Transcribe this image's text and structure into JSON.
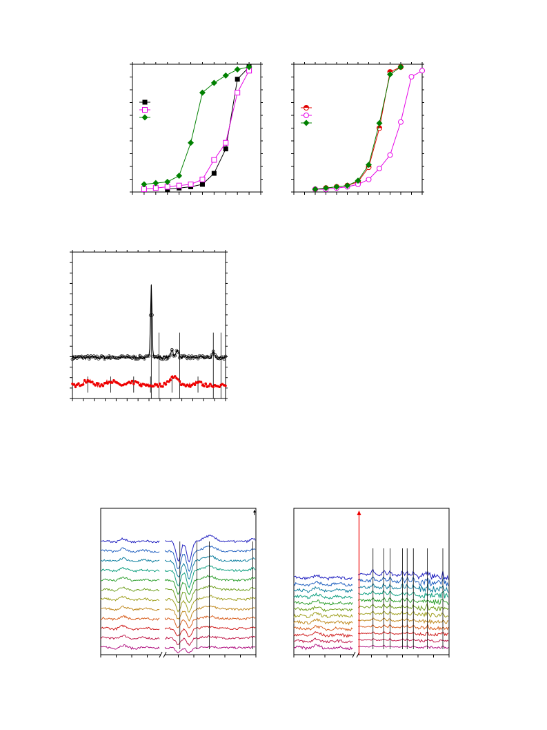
{
  "chart_data": [
    {
      "type": "line",
      "xlim": [
        0,
        11
      ],
      "ylim": [
        0,
        1
      ],
      "legend_position": "left",
      "series": [
        {
          "marker": "filled-square",
          "color": "#000000",
          "x": [
            3,
            4,
            5,
            6,
            7,
            8,
            9,
            10
          ],
          "y": [
            0.0,
            0.01,
            0.02,
            0.04,
            0.13,
            0.33,
            0.9,
            1.0
          ]
        },
        {
          "marker": "open-square",
          "color": "#e600e6",
          "x": [
            1,
            2,
            3,
            4,
            5,
            6,
            7,
            8,
            9,
            10
          ],
          "y": [
            0.0,
            0.01,
            0.02,
            0.03,
            0.04,
            0.08,
            0.24,
            0.38,
            0.79,
            0.97
          ]
        },
        {
          "marker": "filled-diamond",
          "color": "#008000",
          "x": [
            1,
            2,
            3,
            4,
            5,
            6,
            7,
            8,
            9,
            10
          ],
          "y": [
            0.04,
            0.05,
            0.06,
            0.11,
            0.38,
            0.79,
            0.87,
            0.93,
            0.98,
            1.0
          ]
        }
      ]
    },
    {
      "type": "line",
      "xlim": [
        0,
        12
      ],
      "ylim": [
        0,
        1
      ],
      "legend_position": "left",
      "series": [
        {
          "marker": "half-filled-circle",
          "color": "#e00000",
          "x": [
            2,
            3,
            4,
            5,
            6,
            7,
            8,
            9,
            10
          ],
          "y": [
            0.0,
            0.01,
            0.02,
            0.03,
            0.06,
            0.18,
            0.5,
            0.96,
            1.0
          ]
        },
        {
          "marker": "open-circle",
          "color": "#e600e6",
          "x": [
            2,
            3,
            4,
            5,
            6,
            7,
            8,
            9,
            10,
            11,
            12
          ],
          "y": [
            0.0,
            0.0,
            0.01,
            0.02,
            0.04,
            0.08,
            0.17,
            0.28,
            0.55,
            0.92,
            0.97
          ]
        },
        {
          "marker": "filled-diamond",
          "color": "#008000",
          "x": [
            2,
            3,
            4,
            5,
            6,
            7,
            8,
            9,
            10
          ],
          "y": [
            0.0,
            0.01,
            0.02,
            0.03,
            0.07,
            0.2,
            0.54,
            0.94,
            1.0
          ]
        }
      ]
    },
    {
      "type": "line",
      "xlim": [
        0,
        100
      ],
      "ylim": [
        0,
        100
      ],
      "reference_lines_x": [
        51.5,
        56.5,
        70,
        92,
        97
      ],
      "peak_tick_lines_x": [
        10,
        25,
        40,
        51,
        65,
        82
      ],
      "series": [
        {
          "color": "#000000",
          "marker": "open-circle",
          "baseline": 28,
          "noise": 1.2,
          "peaks": [
            {
              "x": 51.5,
              "h": 50,
              "w": 0.7
            },
            {
              "x": 65,
              "h": 6,
              "w": 1.0
            },
            {
              "x": 68.5,
              "h": 6,
              "w": 1.0
            },
            {
              "x": 92,
              "h": 4,
              "w": 1.0
            }
          ]
        },
        {
          "color": "#ee0000",
          "marker": "filled-circle",
          "baseline": 9,
          "noise": 1.2,
          "waves": [
            {
              "x": 10,
              "h": 3,
              "w": 4
            },
            {
              "x": 25,
              "h": 3,
              "w": 4
            },
            {
              "x": 40,
              "h": 2,
              "w": 4
            },
            {
              "x": 66,
              "h": 6,
              "w": 4
            },
            {
              "x": 82,
              "h": 2,
              "w": 3
            }
          ]
        }
      ]
    },
    {
      "type": "line",
      "xlim": [
        0,
        100
      ],
      "ylim": [
        0,
        100
      ],
      "axis_break_at": 40,
      "top_marker_arrow": "black",
      "reference_lines_x": [
        51,
        62,
        70,
        98
      ],
      "series_count": 12,
      "palette": [
        "#b01080",
        "#c01a4a",
        "#d02020",
        "#d86020",
        "#c08a20",
        "#a0a020",
        "#70a020",
        "#30a030",
        "#10a080",
        "#1080a0",
        "#2060c0",
        "#2020c0"
      ],
      "dips": [
        {
          "x": 50,
          "h": 28,
          "w": 2.2
        },
        {
          "x": 57,
          "h": 30,
          "w": 2.2
        }
      ],
      "bumps": [
        {
          "x": 70,
          "h": 8,
          "w": 5
        },
        {
          "x": 98,
          "h": 4,
          "w": 2
        }
      ]
    },
    {
      "type": "line",
      "xlim": [
        0,
        100
      ],
      "ylim": [
        0,
        100
      ],
      "axis_break_at": 40,
      "marker_line_x": 42,
      "marker_line_color": "#ee0000",
      "reference_lines_x": [
        51,
        58,
        62,
        70,
        73,
        77,
        86,
        96
      ],
      "series_count": 12,
      "palette": [
        "#b01080",
        "#c01a4a",
        "#d02020",
        "#d86020",
        "#c08a20",
        "#a0a020",
        "#70a020",
        "#30a030",
        "#10a080",
        "#1080a0",
        "#2060c0",
        "#2020c0"
      ]
    }
  ]
}
